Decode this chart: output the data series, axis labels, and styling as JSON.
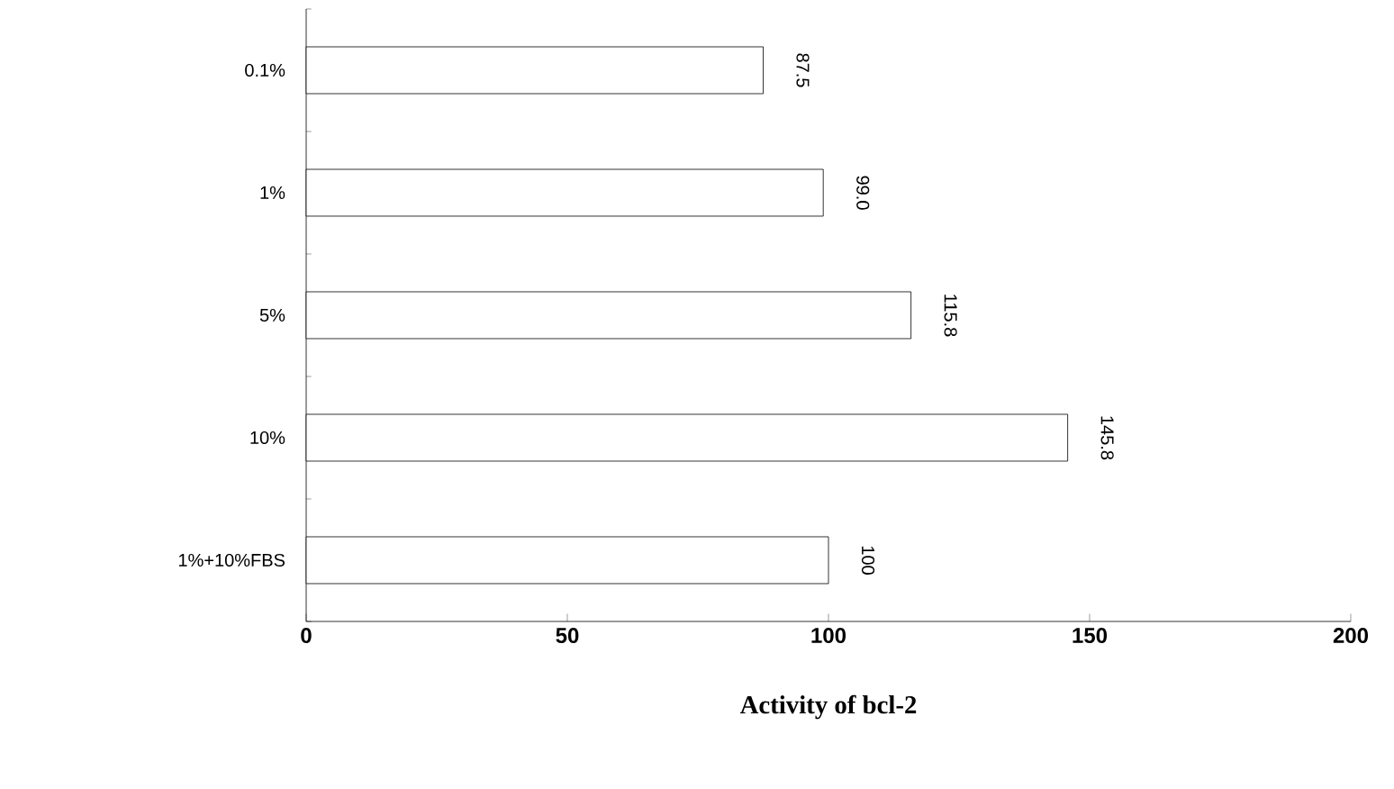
{
  "chart_data": {
    "type": "bar",
    "orientation": "horizontal",
    "xlabel": "Activity of bcl-2",
    "categories": [
      "0.1%",
      "1%",
      "5%",
      "10%",
      "1%+10%FBS"
    ],
    "values": [
      87.5,
      99.0,
      115.8,
      145.8,
      100
    ],
    "value_labels": [
      "87.5",
      "99.0",
      "115.8",
      "145.8",
      "100"
    ],
    "color": "#ffffff",
    "xlim": [
      0,
      200
    ],
    "xticks": [
      0,
      50,
      100,
      150,
      200
    ],
    "grid": false
  }
}
